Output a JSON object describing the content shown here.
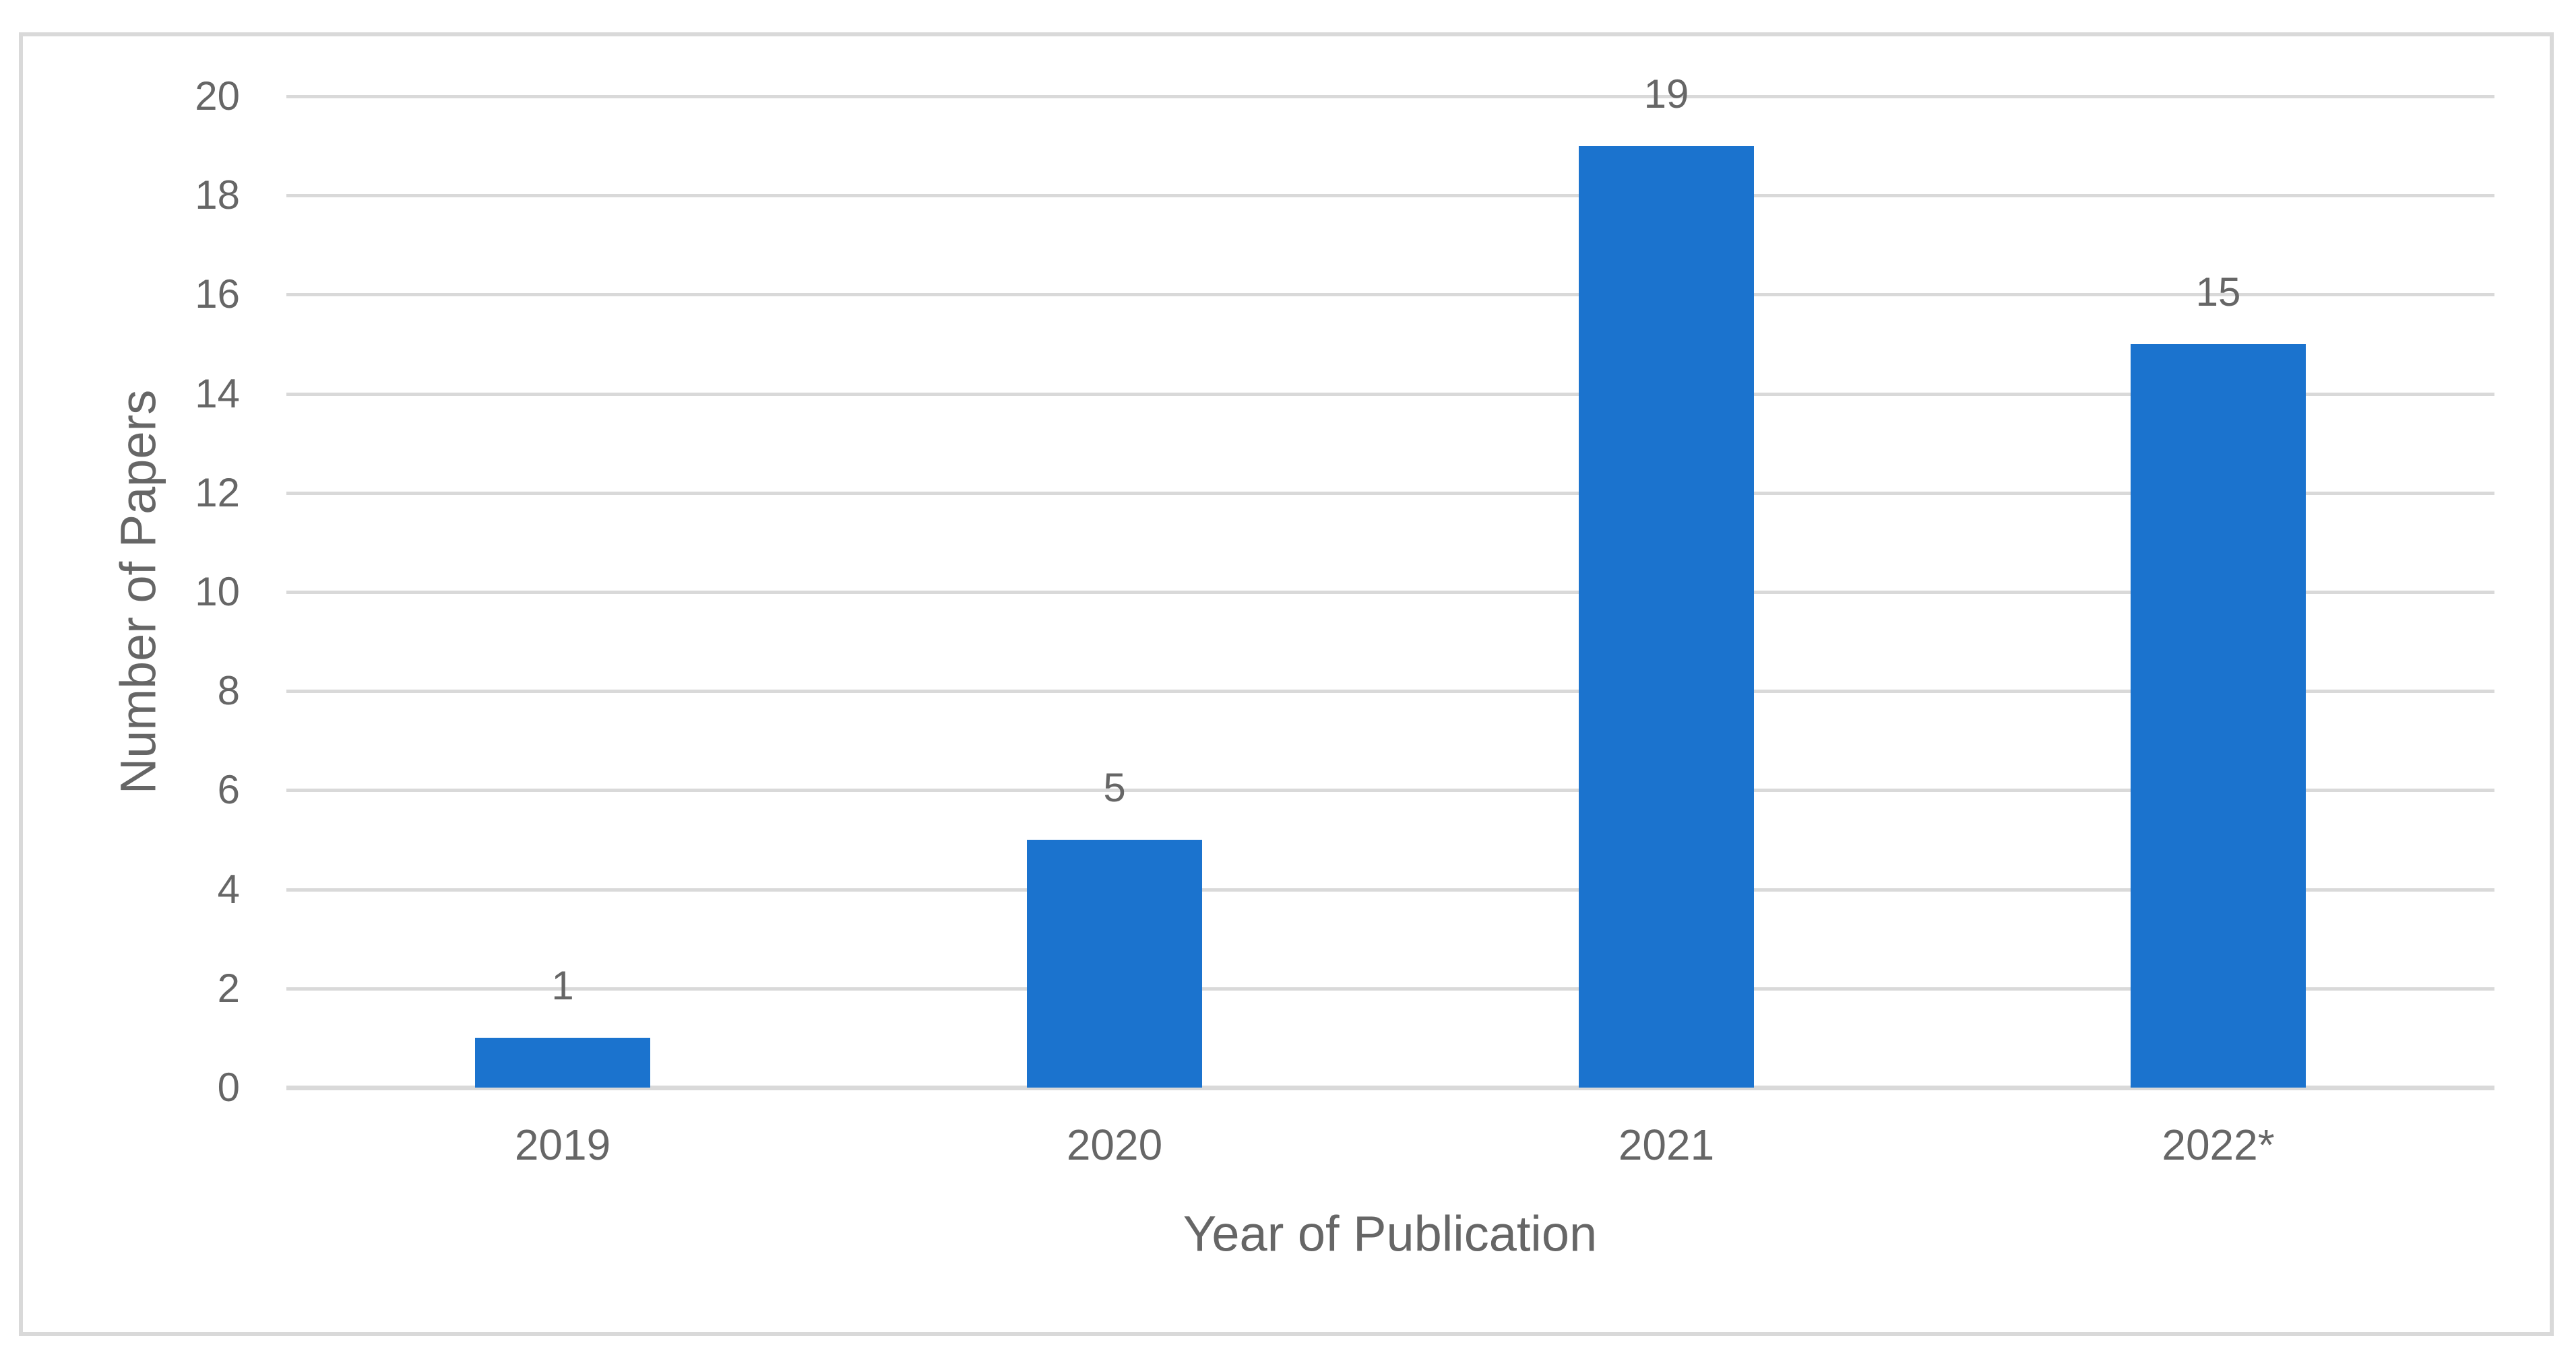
{
  "chart_data": {
    "type": "bar",
    "categories": [
      "2019",
      "2020",
      "2021",
      "2022*"
    ],
    "values": [
      1,
      5,
      19,
      15
    ],
    "data_labels": [
      "1",
      "5",
      "19",
      "15"
    ],
    "xlabel": "Year of Publication",
    "ylabel": "Number of Papers",
    "ylim": [
      0,
      20
    ],
    "ytick_step": 2,
    "yticks": [
      0,
      2,
      4,
      6,
      8,
      10,
      12,
      14,
      16,
      18,
      20
    ],
    "grid": "horizontal",
    "legend": "none",
    "title": "",
    "colors": {
      "bar": "#1b73ce",
      "gridline": "#d9d9d9",
      "axis_line": "#d9d9d9",
      "frame_border": "#d9d9d9",
      "text": "#666666",
      "background": "#ffffff"
    }
  }
}
